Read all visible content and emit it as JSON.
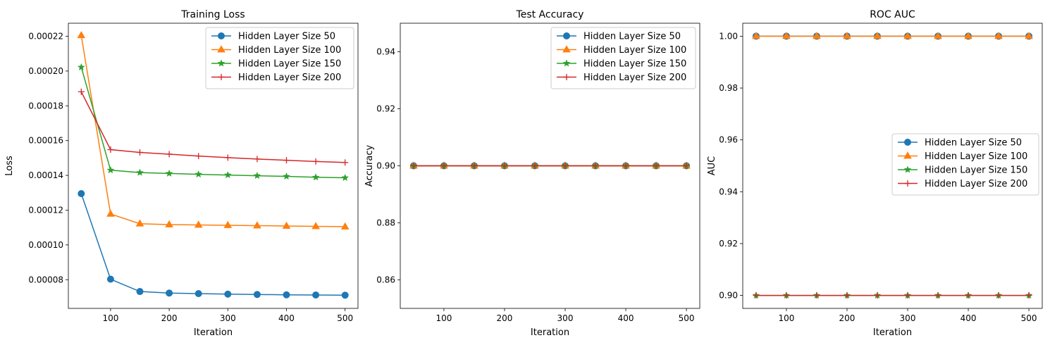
{
  "chart_data": [
    {
      "type": "line",
      "title": "Training Loss",
      "xlabel": "Iteration",
      "ylabel": "Loss",
      "x": [
        50,
        100,
        150,
        200,
        250,
        300,
        350,
        400,
        450,
        500
      ],
      "xticks": [
        100,
        200,
        300,
        400,
        500
      ],
      "xlim": [
        28,
        522
      ],
      "yticks": [
        8e-05,
        0.0001,
        0.00012,
        0.00014,
        0.00016,
        0.00018,
        0.0002,
        0.00022
      ],
      "yticklabels": [
        "0.00008",
        "0.00010",
        "0.00012",
        "0.00014",
        "0.00016",
        "0.00018",
        "0.00020",
        "0.00022"
      ],
      "ylim": [
        6.35e-05,
        0.0002275
      ],
      "grid": false,
      "legend": "upper right",
      "series": [
        {
          "name": "Hidden Layer Size 50",
          "color": "#1f77b4",
          "marker": "circle",
          "values": [
            0.0001295,
            8.03e-05,
            7.32e-05,
            7.23e-05,
            7.2e-05,
            7.17e-05,
            7.15e-05,
            7.13e-05,
            7.12e-05,
            7.11e-05
          ]
        },
        {
          "name": "Hidden Layer Size 100",
          "color": "#ff7f0e",
          "marker": "triangle",
          "values": [
            0.0002205,
            0.0001178,
            0.0001122,
            0.0001117,
            0.0001115,
            0.0001113,
            0.0001111,
            0.0001109,
            0.0001107,
            0.0001105
          ]
        },
        {
          "name": "Hidden Layer Size 150",
          "color": "#2ca02c",
          "marker": "star",
          "values": [
            0.0002022,
            0.000143,
            0.0001416,
            0.0001411,
            0.0001406,
            0.0001402,
            0.0001398,
            0.0001394,
            0.0001389,
            0.0001386
          ]
        },
        {
          "name": "Hidden Layer Size 200",
          "color": "#d62728",
          "marker": "plus",
          "values": [
            0.0001881,
            0.0001548,
            0.0001532,
            0.0001522,
            0.0001511,
            0.0001502,
            0.0001494,
            0.0001487,
            0.000148,
            0.0001474
          ]
        }
      ]
    },
    {
      "type": "line",
      "title": "Test Accuracy",
      "xlabel": "Iteration",
      "ylabel": "Accuracy",
      "x": [
        50,
        100,
        150,
        200,
        250,
        300,
        350,
        400,
        450,
        500
      ],
      "xticks": [
        100,
        200,
        300,
        400,
        500
      ],
      "xlim": [
        28,
        522
      ],
      "yticks": [
        0.86,
        0.88,
        0.9,
        0.92,
        0.94
      ],
      "yticklabels": [
        "0.86",
        "0.88",
        "0.90",
        "0.92",
        "0.94"
      ],
      "ylim": [
        0.85,
        0.95
      ],
      "grid": false,
      "legend": "upper right",
      "series": [
        {
          "name": "Hidden Layer Size 50",
          "color": "#1f77b4",
          "marker": "circle",
          "values": [
            0.9,
            0.9,
            0.9,
            0.9,
            0.9,
            0.9,
            0.9,
            0.9,
            0.9,
            0.9
          ]
        },
        {
          "name": "Hidden Layer Size 100",
          "color": "#ff7f0e",
          "marker": "triangle",
          "values": [
            0.9,
            0.9,
            0.9,
            0.9,
            0.9,
            0.9,
            0.9,
            0.9,
            0.9,
            0.9
          ]
        },
        {
          "name": "Hidden Layer Size 150",
          "color": "#2ca02c",
          "marker": "star",
          "values": [
            0.9,
            0.9,
            0.9,
            0.9,
            0.9,
            0.9,
            0.9,
            0.9,
            0.9,
            0.9
          ]
        },
        {
          "name": "Hidden Layer Size 200",
          "color": "#d62728",
          "marker": "plus",
          "values": [
            0.9,
            0.9,
            0.9,
            0.9,
            0.9,
            0.9,
            0.9,
            0.9,
            0.9,
            0.9
          ]
        }
      ]
    },
    {
      "type": "line",
      "title": "ROC AUC",
      "xlabel": "Iteration",
      "ylabel": "AUC",
      "x": [
        50,
        100,
        150,
        200,
        250,
        300,
        350,
        400,
        450,
        500
      ],
      "xticks": [
        100,
        200,
        300,
        400,
        500
      ],
      "xlim": [
        28,
        522
      ],
      "yticks": [
        0.9,
        0.92,
        0.94,
        0.96,
        0.98,
        1.0
      ],
      "yticklabels": [
        "0.90",
        "0.92",
        "0.94",
        "0.96",
        "0.98",
        "1.00"
      ],
      "ylim": [
        0.895,
        1.005
      ],
      "grid": false,
      "legend": "center right",
      "series": [
        {
          "name": "Hidden Layer Size 50",
          "color": "#1f77b4",
          "marker": "circle",
          "values": [
            1.0,
            1.0,
            1.0,
            1.0,
            1.0,
            1.0,
            1.0,
            1.0,
            1.0,
            1.0
          ]
        },
        {
          "name": "Hidden Layer Size 100",
          "color": "#ff7f0e",
          "marker": "triangle",
          "values": [
            1.0,
            1.0,
            1.0,
            1.0,
            1.0,
            1.0,
            1.0,
            1.0,
            1.0,
            1.0
          ]
        },
        {
          "name": "Hidden Layer Size 150",
          "color": "#2ca02c",
          "marker": "star",
          "values": [
            0.9,
            0.9,
            0.9,
            0.9,
            0.9,
            0.9,
            0.9,
            0.9,
            0.9,
            0.9
          ]
        },
        {
          "name": "Hidden Layer Size 200",
          "color": "#d62728",
          "marker": "plus",
          "values": [
            0.9,
            0.9,
            0.9,
            0.9,
            0.9,
            0.9,
            0.9,
            0.9,
            0.9,
            0.9
          ]
        }
      ]
    }
  ]
}
